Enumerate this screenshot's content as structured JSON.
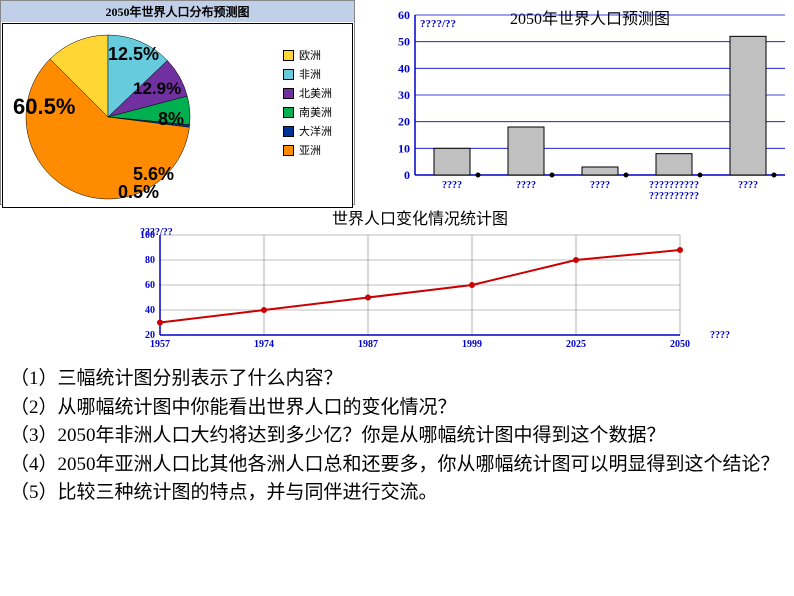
{
  "pie": {
    "title": "2050年世界人口分布预测图",
    "slices": [
      {
        "label": "欧洲",
        "value": 12.5,
        "color": "#ffd633"
      },
      {
        "label": "非洲",
        "value": 12.9,
        "color": "#66ccdd"
      },
      {
        "label": "北美洲",
        "value": 8,
        "color": "#7030a0"
      },
      {
        "label": "南美洲",
        "value": 5.6,
        "color": "#00b050"
      },
      {
        "label": "大洋洲",
        "value": 0.5,
        "color": "#003399"
      },
      {
        "label": "亚洲",
        "value": 60.5,
        "color": "#ff8c00"
      }
    ],
    "label_text": {
      "europe": "12.5%",
      "africa": "12.9%",
      "namer": "8%",
      "samer": "5.6%",
      "oceania": "0.5%",
      "asia": "60.5%"
    },
    "label_fontsize": 18,
    "background": "#ffffff",
    "title_bg": "#c0d0e8"
  },
  "bar": {
    "type": "bar",
    "title": "2050年世界人口预测图",
    "unit_label": "????/??",
    "categories": [
      "????",
      "????",
      "????",
      "??????????\n??????????",
      "????"
    ],
    "values": [
      10,
      18,
      3,
      8,
      52
    ],
    "ylim": [
      0,
      60
    ],
    "ytick_step": 10,
    "bar_color": "#c0c0c0",
    "bar_border": "#000000",
    "axis_color": "#0000cc",
    "tick_label_color": "#0000cc",
    "grid_color": "#0000cc",
    "title_fontsize": 16,
    "axis_fontsize": 11
  },
  "line": {
    "type": "line",
    "title": "世界人口变化情况统计图",
    "unit_label": "????/??",
    "x_end_label": "????",
    "x": [
      1957,
      1974,
      1987,
      1999,
      2025,
      2050
    ],
    "y": [
      30,
      40,
      50,
      60,
      80,
      88
    ],
    "ylim": [
      20,
      100
    ],
    "ytick_step": 20,
    "line_color": "#cc0000",
    "line_width": 2,
    "axis_color": "#0000cc",
    "grid_color": "#808080",
    "title_fontsize": 16,
    "axis_fontsize": 10
  },
  "questions": {
    "q1": "（1）三幅统计图分别表示了什么内容？",
    "q2": "（2）从哪幅统计图中你能看出世界人口的变化情况？",
    "q3": "（3）2050年非洲人口大约将达到多少亿？你是从哪幅统计图中得到这个数据？",
    "q4": "（4）2050年亚洲人口比其他各洲人口总和还要多，你从哪幅统计图可以明显得到这个结论？",
    "q5": "（5）比较三种统计图的特点，并与同伴进行交流。"
  }
}
